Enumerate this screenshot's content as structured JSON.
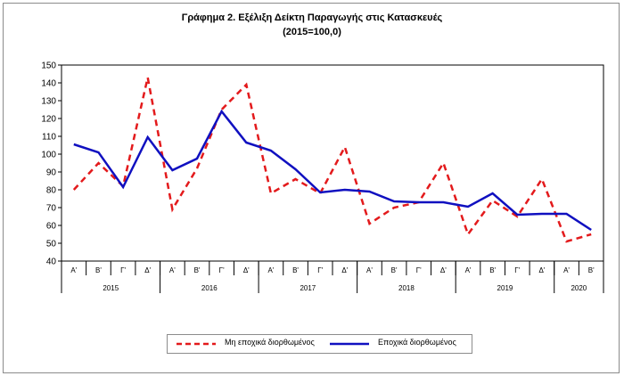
{
  "chart_data": {
    "type": "line",
    "title": "Γράφημα 2. Εξέλιξη Δείκτη Παραγωγής στις Κατασκευές",
    "subtitle": "(2015=100,0)",
    "ylim": [
      40,
      150
    ],
    "yticks": [
      40,
      50,
      60,
      70,
      80,
      90,
      100,
      110,
      120,
      130,
      140,
      150
    ],
    "grid": false,
    "legend_position": "bottom",
    "categories": [
      "Α'",
      "Β'",
      "Γ'",
      "Δ'",
      "Α'",
      "Β'",
      "Γ'",
      "Δ'",
      "Α'",
      "Β'",
      "Γ'",
      "Δ'",
      "Α'",
      "Β'",
      "Γ'",
      "Δ'",
      "Α'",
      "Β'",
      "Γ'",
      "Δ'",
      "Α'",
      "Β'"
    ],
    "years": [
      {
        "label": "2015",
        "quarters": 4
      },
      {
        "label": "2016",
        "quarters": 4
      },
      {
        "label": "2017",
        "quarters": 4
      },
      {
        "label": "2018",
        "quarters": 4
      },
      {
        "label": "2019",
        "quarters": 4
      },
      {
        "label": "2020",
        "quarters": 2
      }
    ],
    "series": [
      {
        "name": "Μη εποχικά διορθωμένος",
        "color": "#e31a1c",
        "style": "dashed",
        "values": [
          80.0,
          95.0,
          82.0,
          143.0,
          69.0,
          92.0,
          125.0,
          139.0,
          78.0,
          86.0,
          78.0,
          104.0,
          61.0,
          70.0,
          73.0,
          95.0,
          55.0,
          74.0,
          65.0,
          86.0,
          51.0,
          55.0
        ]
      },
      {
        "name": "Εποχικά διορθωμένος",
        "color": "#1010c0",
        "style": "solid",
        "values": [
          105.5,
          101.0,
          81.5,
          109.5,
          91.0,
          97.5,
          124.0,
          106.5,
          102.0,
          91.5,
          78.5,
          80.0,
          79.0,
          73.5,
          73.0,
          73.0,
          70.5,
          78.0,
          66.0,
          66.5,
          66.5,
          57.5
        ]
      }
    ]
  }
}
